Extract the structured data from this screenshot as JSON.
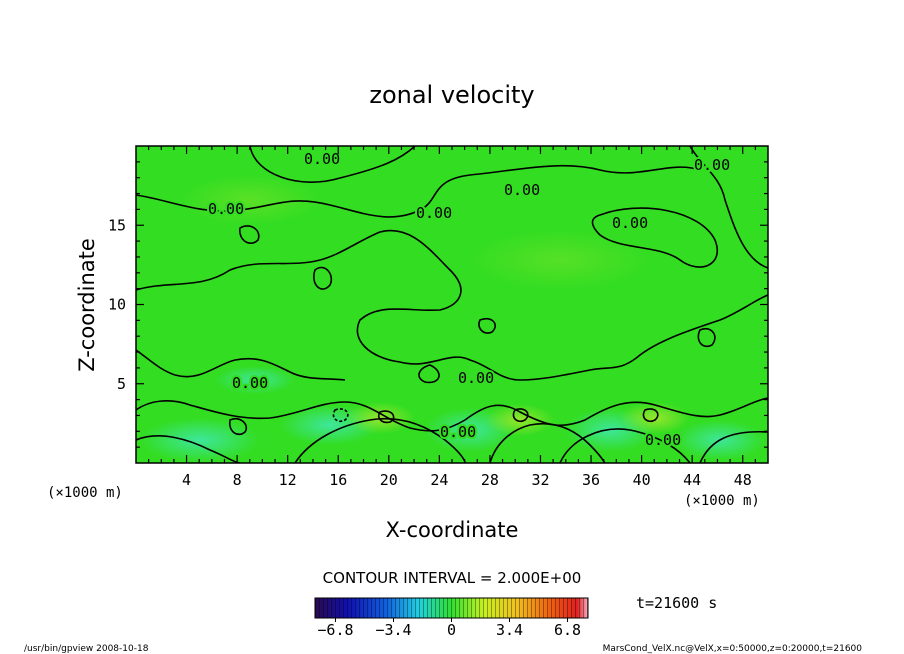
{
  "chart_data": {
    "type": "heatmap",
    "title": "zonal velocity",
    "xlabel": "X-coordinate",
    "ylabel": "Z-coordinate",
    "x_unit": "(×1000 m)",
    "y_unit": "(×1000 m)",
    "xlim": [
      0,
      50
    ],
    "ylim": [
      0,
      20
    ],
    "x_ticks": [
      "4",
      "8",
      "12",
      "16",
      "20",
      "24",
      "28",
      "32",
      "36",
      "40",
      "44",
      "48"
    ],
    "y_ticks": [
      "5",
      "10",
      "15"
    ],
    "contour_interval_label": "CONTOUR INTERVAL = 2.000E+00",
    "contour_labels": [
      "0.00",
      "0.00",
      "0.00",
      "0.00",
      "0.00",
      "0.00",
      "0.00",
      "0.00",
      "0.00",
      "0.00"
    ],
    "colorbar_ticks": [
      "−6.8",
      "−3.4",
      "0",
      "3.4",
      "6.8"
    ],
    "colorbar_range": [
      -8,
      8
    ],
    "time_label": "t=21600 s",
    "footer_left": "/usr/bin/gpview   2008-10-18",
    "footer_right": "MarsCond_VelX.nc@VelX,x=0:50000,z=0:20000,t=21600",
    "field_color": "#33dd22",
    "grid": false
  }
}
